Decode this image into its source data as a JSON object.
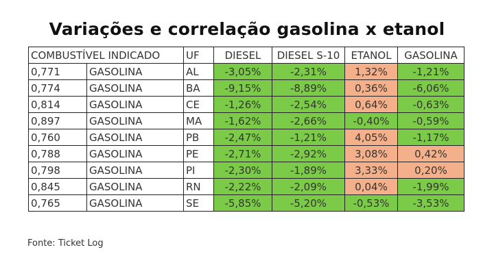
{
  "title": "Variações e correlação gasolina x etanol",
  "headers": {
    "combustivel": "COMBUSTÍVEL INDICADO",
    "uf": "UF",
    "diesel": "DIESEL",
    "diesel_s10": "DIESEL S-10",
    "etanol": "ETANOL",
    "gasolina": "GASOLINA"
  },
  "colors": {
    "negative": "#7ccb48",
    "positive": "#f4b08a"
  },
  "rows": [
    {
      "index": "0,771",
      "fuel": "GASOLINA",
      "uf": "AL",
      "diesel": "-3,05%",
      "diesel_s10": "-2,31%",
      "etanol": "1,32%",
      "gasolina": "-1,21%"
    },
    {
      "index": "0,774",
      "fuel": "GASOLINA",
      "uf": "BA",
      "diesel": "-9,15%",
      "diesel_s10": "-8,89%",
      "etanol": "0,36%",
      "gasolina": "-6,06%"
    },
    {
      "index": "0,814",
      "fuel": "GASOLINA",
      "uf": "CE",
      "diesel": "-1,26%",
      "diesel_s10": "-2,54%",
      "etanol": "0,64%",
      "gasolina": "-0,63%"
    },
    {
      "index": "0,897",
      "fuel": "GASOLINA",
      "uf": "MA",
      "diesel": "-1,62%",
      "diesel_s10": "-2,66%",
      "etanol": "-0,40%",
      "gasolina": "-0,59%"
    },
    {
      "index": "0,760",
      "fuel": "GASOLINA",
      "uf": "PB",
      "diesel": "-2,47%",
      "diesel_s10": "-1,21%",
      "etanol": "4,05%",
      "gasolina": "-1,17%"
    },
    {
      "index": "0,788",
      "fuel": "GASOLINA",
      "uf": "PE",
      "diesel": "-2,71%",
      "diesel_s10": "-2,92%",
      "etanol": "3,08%",
      "gasolina": "0,42%"
    },
    {
      "index": "0,798",
      "fuel": "GASOLINA",
      "uf": "PI",
      "diesel": "-2,30%",
      "diesel_s10": "-1,89%",
      "etanol": "3,33%",
      "gasolina": "0,20%"
    },
    {
      "index": "0,845",
      "fuel": "GASOLINA",
      "uf": "RN",
      "diesel": "-2,22%",
      "diesel_s10": "-2,09%",
      "etanol": "0,04%",
      "gasolina": "-1,99%"
    },
    {
      "index": "0,765",
      "fuel": "GASOLINA",
      "uf": "SE",
      "diesel": "-5,85%",
      "diesel_s10": "-5,20%",
      "etanol": "-0,53%",
      "gasolina": "-3,53%"
    }
  ],
  "source": "Fonte: Ticket Log"
}
